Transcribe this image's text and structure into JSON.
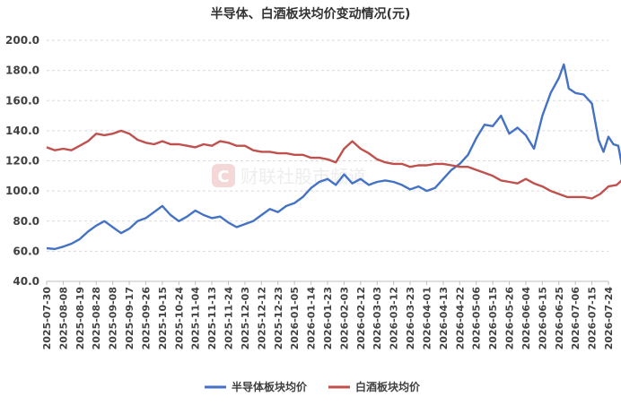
{
  "chart_data": {
    "type": "line",
    "title": "半导体、白酒板块均价变动情况(元)",
    "watermark": "财联社股市频道",
    "xlabel": "",
    "ylabel": "",
    "ylim": [
      40,
      200
    ],
    "yticks": [
      "200.0",
      "180.0",
      "160.0",
      "140.0",
      "120.0",
      "100.0",
      "80.0",
      "60.0",
      "40.0"
    ],
    "grid": "horizontal dashed",
    "legend_position": "bottom-center",
    "x_tick_labels": [
      "2025-07-30",
      "2025-08-08",
      "2025-08-19",
      "2025-08-28",
      "2025-09-08",
      "2025-09-17",
      "2025-09-26",
      "2025-10-15",
      "2025-10-24",
      "2025-11-04",
      "2025-11-13",
      "2025-11-24",
      "2025-12-03",
      "2025-12-12",
      "2025-12-23",
      "2026-01-05",
      "2026-01-14",
      "2026-01-23",
      "2026-02-03",
      "2026-02-12",
      "2026-03-03",
      "2026-03-12",
      "2026-03-23",
      "2026-04-01",
      "2026-04-13",
      "2026-04-22",
      "2026-05-06",
      "2026-05-15",
      "2026-05-26",
      "2026-06-04",
      "2026-06-15",
      "2026-06-25",
      "2026-07-06",
      "2026-07-15",
      "2026-07-24"
    ],
    "series": [
      {
        "name": "半导体板块均价",
        "color": "#4472c4",
        "points": [
          [
            0,
            62
          ],
          [
            0.5,
            61.5
          ],
          [
            1,
            63
          ],
          [
            1.5,
            65
          ],
          [
            2,
            68
          ],
          [
            2.5,
            73
          ],
          [
            3,
            77
          ],
          [
            3.5,
            80
          ],
          [
            4,
            76
          ],
          [
            4.5,
            72
          ],
          [
            5,
            75
          ],
          [
            5.5,
            80
          ],
          [
            6,
            82
          ],
          [
            6.5,
            86
          ],
          [
            7,
            90
          ],
          [
            7.5,
            84
          ],
          [
            8,
            80
          ],
          [
            8.5,
            83
          ],
          [
            9,
            87
          ],
          [
            9.5,
            84
          ],
          [
            10,
            82
          ],
          [
            10.5,
            83
          ],
          [
            11,
            79
          ],
          [
            11.5,
            76
          ],
          [
            12,
            78
          ],
          [
            12.5,
            80
          ],
          [
            13,
            84
          ],
          [
            13.5,
            88
          ],
          [
            14,
            86
          ],
          [
            14.5,
            90
          ],
          [
            15,
            92
          ],
          [
            15.5,
            96
          ],
          [
            16,
            102
          ],
          [
            16.5,
            106
          ],
          [
            17,
            108
          ],
          [
            17.5,
            104
          ],
          [
            18,
            111
          ],
          [
            18.5,
            105
          ],
          [
            19,
            108
          ],
          [
            19.5,
            104
          ],
          [
            20,
            106
          ],
          [
            20.5,
            107
          ],
          [
            21,
            106
          ],
          [
            21.5,
            104
          ],
          [
            22,
            101
          ],
          [
            22.5,
            103
          ],
          [
            23,
            100
          ],
          [
            23.5,
            102
          ],
          [
            24,
            108
          ],
          [
            24.5,
            114
          ],
          [
            25,
            118
          ],
          [
            25.5,
            124
          ],
          [
            26,
            135
          ],
          [
            26.5,
            144
          ],
          [
            27,
            143
          ],
          [
            27.5,
            150
          ],
          [
            28,
            138
          ],
          [
            28.5,
            142
          ],
          [
            29,
            137
          ],
          [
            29.5,
            128
          ],
          [
            30,
            150
          ],
          [
            30.5,
            165
          ],
          [
            31,
            175
          ],
          [
            31.3,
            184
          ],
          [
            31.6,
            168
          ],
          [
            32,
            165
          ],
          [
            32.5,
            164
          ],
          [
            33,
            158
          ],
          [
            33.4,
            134
          ],
          [
            33.7,
            126
          ],
          [
            34,
            136
          ],
          [
            34.3,
            131
          ],
          [
            34.6,
            130
          ],
          [
            34.8,
            118
          ],
          [
            35,
            112
          ]
        ]
      },
      {
        "name": "白酒板块均价",
        "color": "#c0504d",
        "points": [
          [
            0,
            129
          ],
          [
            0.5,
            127
          ],
          [
            1,
            128
          ],
          [
            1.5,
            127
          ],
          [
            2,
            130
          ],
          [
            2.5,
            133
          ],
          [
            3,
            138
          ],
          [
            3.5,
            137
          ],
          [
            4,
            138
          ],
          [
            4.5,
            140
          ],
          [
            5,
            138
          ],
          [
            5.5,
            134
          ],
          [
            6,
            132
          ],
          [
            6.5,
            131
          ],
          [
            7,
            133
          ],
          [
            7.5,
            131
          ],
          [
            8,
            131
          ],
          [
            8.5,
            130
          ],
          [
            9,
            129
          ],
          [
            9.5,
            131
          ],
          [
            10,
            130
          ],
          [
            10.5,
            133
          ],
          [
            11,
            132
          ],
          [
            11.5,
            130
          ],
          [
            12,
            130
          ],
          [
            12.5,
            127
          ],
          [
            13,
            126
          ],
          [
            13.5,
            126
          ],
          [
            14,
            125
          ],
          [
            14.5,
            125
          ],
          [
            15,
            124
          ],
          [
            15.5,
            124
          ],
          [
            16,
            122
          ],
          [
            16.5,
            122
          ],
          [
            17,
            121
          ],
          [
            17.5,
            119
          ],
          [
            18,
            128
          ],
          [
            18.5,
            133
          ],
          [
            19,
            128
          ],
          [
            19.5,
            125
          ],
          [
            20,
            121
          ],
          [
            20.5,
            119
          ],
          [
            21,
            118
          ],
          [
            21.5,
            118
          ],
          [
            22,
            116
          ],
          [
            22.5,
            117
          ],
          [
            23,
            117
          ],
          [
            23.5,
            118
          ],
          [
            24,
            118
          ],
          [
            24.5,
            117
          ],
          [
            25,
            116
          ],
          [
            25.5,
            116
          ],
          [
            26,
            114
          ],
          [
            26.5,
            112
          ],
          [
            27,
            110
          ],
          [
            27.5,
            107
          ],
          [
            28,
            106
          ],
          [
            28.5,
            105
          ],
          [
            29,
            108
          ],
          [
            29.5,
            105
          ],
          [
            30,
            103
          ],
          [
            30.5,
            100
          ],
          [
            31,
            98
          ],
          [
            31.5,
            96
          ],
          [
            32,
            96
          ],
          [
            32.5,
            96
          ],
          [
            33,
            95
          ],
          [
            33.5,
            98
          ],
          [
            34,
            103
          ],
          [
            34.5,
            104
          ],
          [
            35,
            109
          ]
        ]
      }
    ]
  }
}
